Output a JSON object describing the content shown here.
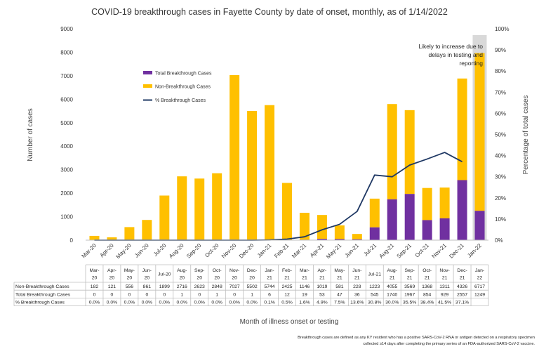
{
  "chart_data": {
    "type": "bar",
    "title": "COVID-19 breakthrough cases in Fayette County by date of onset, monthly, as of 1/14/2022",
    "xlabel": "Month of illness onset or testing",
    "ylabel": "Number of cases",
    "y2label": "Percentage of total cases",
    "ylim": [
      0,
      9000
    ],
    "y2lim": [
      0,
      100
    ],
    "yticks": [
      "0",
      "1000",
      "2000",
      "3000",
      "4000",
      "5000",
      "6000",
      "7000",
      "8000",
      "9000"
    ],
    "y2ticks": [
      "0%",
      "10%",
      "20%",
      "30%",
      "40%",
      "50%",
      "60%",
      "70%",
      "80%",
      "90%",
      "100%"
    ],
    "grid": false,
    "legend_position": "upper-left-inside",
    "categories": [
      "Mar-20",
      "Apr-20",
      "May-20",
      "Jun-20",
      "Jul-20",
      "Aug-20",
      "Sep-20",
      "Oct-20",
      "Nov-20",
      "Dec-20",
      "Jan-21",
      "Feb-21",
      "Mar-21",
      "Apr-21",
      "May-21",
      "Jun-21",
      "Jul-21",
      "Aug-21",
      "Sep-21",
      "Oct-21",
      "Nov-21",
      "Dec-21",
      "Jan-22"
    ],
    "table_categories": [
      "Mar-\n20",
      "Apr-\n20",
      "May-\n20",
      "Jun-\n20",
      "Jul-20",
      "Aug-\n20",
      "Sep-\n20",
      "Oct-\n20",
      "Nov-\n20",
      "Dec-\n20",
      "Jan-\n21",
      "Feb-\n21",
      "Mar-\n21",
      "Apr-\n21",
      "May-\n21",
      "Jun-\n21",
      "Jul-21",
      "Aug-\n21",
      "Sep-\n21",
      "Oct-\n21",
      "Nov-\n21",
      "Dec-\n21",
      "Jan-\n22"
    ],
    "series": [
      {
        "name": "Total Breakthrough Cases",
        "kind": "bar",
        "color": "#7030a0",
        "values": [
          0,
          0,
          0,
          0,
          0,
          1,
          0,
          1,
          0,
          1,
          6,
          12,
          19,
          53,
          47,
          36,
          545,
          1740,
          1967,
          854,
          929,
          2557,
          1249
        ]
      },
      {
        "name": "Non-Breakthrough Cases",
        "kind": "bar",
        "color": "#ffc000",
        "values": [
          182,
          121,
          556,
          861,
          1899,
          2716,
          2623,
          2848,
          7027,
          5502,
          5744,
          2425,
          1146,
          1019,
          581,
          228,
          1223,
          4055,
          3569,
          1368,
          1311,
          4326,
          6717
        ]
      },
      {
        "name": "% Breakthrough Cases",
        "kind": "line",
        "color": "#1f3864",
        "axis": "right",
        "values": [
          0.0,
          0.0,
          0.0,
          0.0,
          0.0,
          0.0,
          0.0,
          0.0,
          0.0,
          0.0,
          0.1,
          0.5,
          1.6,
          4.9,
          7.5,
          13.6,
          30.8,
          30.0,
          35.5,
          38.4,
          41.5,
          37.1,
          null
        ]
      }
    ],
    "table_rows": [
      {
        "label": "Non-Breakthrough Cases",
        "values": [
          "182",
          "121",
          "556",
          "861",
          "1899",
          "2716",
          "2623",
          "2848",
          "7027",
          "5502",
          "5744",
          "2425",
          "1146",
          "1019",
          "581",
          "228",
          "1223",
          "4055",
          "3569",
          "1368",
          "1311",
          "4326",
          "6717"
        ]
      },
      {
        "label": "Total Breakthrough Cases",
        "values": [
          "0",
          "0",
          "0",
          "0",
          "0",
          "1",
          "0",
          "1",
          "0",
          "1",
          "6",
          "12",
          "19",
          "53",
          "47",
          "36",
          "545",
          "1740",
          "1967",
          "854",
          "929",
          "2557",
          "1249"
        ]
      },
      {
        "label": "% Breakthrough Cases",
        "values": [
          "0.0%",
          "0.0%",
          "0.0%",
          "0.0%",
          "0.0%",
          "0.0%",
          "0.0%",
          "0.0%",
          "0.0%",
          "0.0%",
          "0.1%",
          "0.5%",
          "1.6%",
          "4.9%",
          "7.5%",
          "13.6%",
          "30.8%",
          "30.0%",
          "35.5%",
          "38.4%",
          "41.5%",
          "37.1%",
          ""
        ]
      }
    ],
    "annotation": {
      "lines": [
        "Likely to increase due to",
        "delays in testing and",
        "reporting"
      ],
      "highlight_category": "Jan-22",
      "highlight_color": "#d9d9d9"
    },
    "footnote": [
      "Breakthrough cases are defined as any KY resident who has a positive SARS-CoV-2 RNA or antigen detected on a respiratory specimen",
      "collected ≥14 days after completing the primary series of an FDA-authorized SARS-CoV-2 vaccine."
    ]
  }
}
